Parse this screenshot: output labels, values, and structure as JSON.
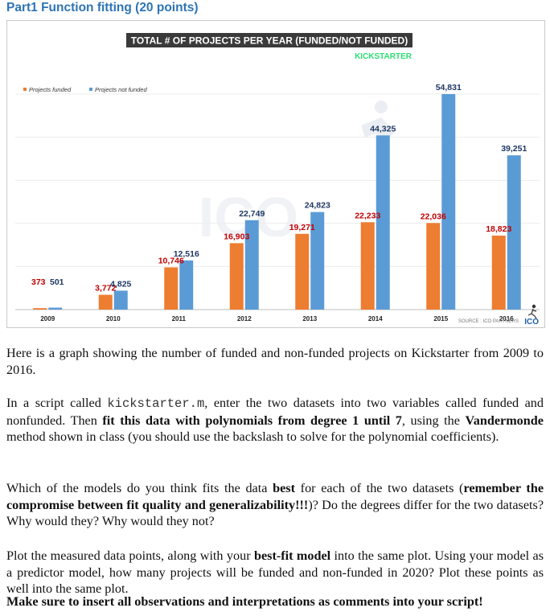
{
  "heading": "Part1 Function fitting (20 points)",
  "chart_data": {
    "type": "bar",
    "title": "TOTAL # OF PROJECTS PER YEAR (FUNDED/NOT FUNDED)",
    "brand": "KICKSTARTER",
    "watermark": "ICO",
    "categories": [
      "2009",
      "2010",
      "2011",
      "2012",
      "2013",
      "2014",
      "2015",
      "2016"
    ],
    "series": [
      {
        "name": "Projects funded",
        "color": "#ed7d31",
        "values": [
          373,
          3772,
          10746,
          16903,
          19271,
          22233,
          22036,
          18823
        ],
        "labels": [
          "373",
          "3,772",
          "10,746",
          "16,903",
          "19,271",
          "22,233",
          "22,036",
          "18,823"
        ]
      },
      {
        "name": "Projects not funded",
        "color": "#5b9bd5",
        "values": [
          501,
          4825,
          12516,
          22749,
          24823,
          44325,
          54831,
          39251
        ],
        "labels": [
          "501",
          "4,825",
          "12,516",
          "22,749",
          "24,823",
          "44,325",
          "54,831",
          "39,251"
        ]
      }
    ],
    "ylim": [
      0,
      60000
    ],
    "grid": true,
    "legend": "top-left",
    "source": "SOURCE : ICO PARTNERS",
    "source_logo": "ICO"
  },
  "p1": "Here is a graph showing the number of funded and non-funded projects on Kickstarter from 2009 to 2016.",
  "p2": {
    "a": "In a script called ",
    "code": "kickstarter.m",
    "b": ", enter the two datasets into two variables called funded and nonfunded. Then ",
    "bold1": "fit this data with polynomials from degree 1 until 7",
    "c": ", using the ",
    "bold2": "Vandermonde",
    "d": " method shown in class (you should use the backslash to solve for the polynomial coefficients)."
  },
  "p3": {
    "a": "Which of the models do you think fits the data ",
    "bold1": "best",
    "b": " for each of the two datasets (",
    "bold2": "remember the compromise between fit quality and generalizability!!!",
    "c": ")? Do the degrees differ for the two datasets? Why would they? Why would they not?"
  },
  "p4": {
    "a": "Plot the measured data points, along with your ",
    "bold1": "best-fit model",
    "b": " into the same plot. Using your model as a predictor model, how many projects will be funded and non-funded in 2020? Plot these points as well into the same plot."
  },
  "p5": "Make sure to insert all observations and interpretations as comments into your script!"
}
